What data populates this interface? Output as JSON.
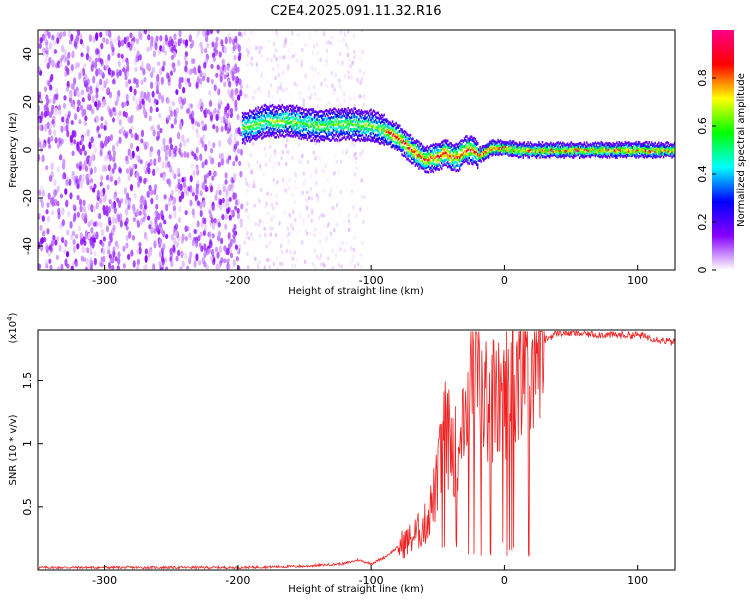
{
  "title": "C2E4.2025.091.11.32.R16",
  "chart_data": [
    {
      "type": "heatmap",
      "xlabel": "Height of straight line (km)",
      "ylabel": "Frequency (Hz)",
      "xlim": [
        -350,
        128
      ],
      "ylim": [
        -50,
        50
      ],
      "xticks": [
        -300,
        -200,
        -100,
        0,
        100
      ],
      "yticks": [
        -40,
        -20,
        0,
        20,
        40
      ],
      "colorbar": {
        "label": "Normalized spectral amplitude",
        "range": [
          0,
          1
        ],
        "ticks": [
          0.0,
          0.2,
          0.4,
          0.6,
          0.8
        ],
        "colors": [
          "#ffffff",
          "#8800ff",
          "#0000ff",
          "#00ffff",
          "#00ff00",
          "#ffff00",
          "#ff0000",
          "#ff0088"
        ]
      },
      "ridge_x": [
        -197,
        -180,
        -160,
        -140,
        -120,
        -100,
        -90,
        -80,
        -70,
        -60,
        -50,
        -45,
        -40,
        -35,
        -30,
        -25,
        -20,
        -15,
        -10,
        -5,
        0,
        10,
        50,
        100,
        128
      ],
      "ridge_y": [
        9,
        12,
        12,
        10,
        11,
        10,
        8,
        5,
        0,
        -4,
        -3,
        -1,
        -3,
        -3,
        0,
        0,
        -2,
        -1,
        1,
        1,
        1,
        0,
        0,
        0,
        0
      ]
    },
    {
      "type": "line",
      "xlabel": "Height of straight line (km)",
      "ylabel": "SNR (10 * v/v)",
      "yscale_label": "(x10^4)",
      "xlim": [
        -350,
        128
      ],
      "ylim": [
        0,
        1.9
      ],
      "xticks": [
        -300,
        -200,
        -100,
        0,
        100
      ],
      "yticks": [
        0.5,
        1,
        1.5
      ],
      "series": [
        {
          "color": "#ee2020",
          "x": [
            -350,
            -300,
            -250,
            -200,
            -150,
            -120,
            -110,
            -100,
            -90,
            -80,
            -70,
            -60,
            -55,
            -50,
            -45,
            -40,
            -35,
            -30,
            -25,
            -20,
            -15,
            -10,
            -5,
            0,
            5,
            10,
            20,
            30,
            40,
            60,
            80,
            100,
            128
          ],
          "y": [
            0.02,
            0.02,
            0.02,
            0.02,
            0.03,
            0.05,
            0.08,
            0.05,
            0.1,
            0.18,
            0.25,
            0.35,
            0.5,
            0.7,
            1.1,
            1.0,
            0.9,
            1.3,
            1.6,
            1.5,
            1.3,
            1.4,
            1.3,
            1.4,
            1.5,
            1.65,
            1.75,
            1.82,
            1.88,
            1.87,
            1.86,
            1.86,
            1.8
          ]
        }
      ]
    }
  ]
}
